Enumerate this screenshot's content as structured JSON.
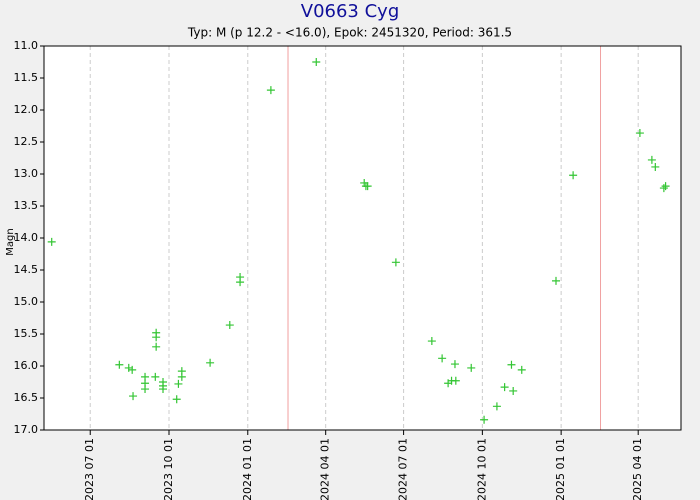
{
  "chart_data": {
    "type": "scatter",
    "title": "V0663 Cyg",
    "subtitle": "Typ: M (p 12.2 - <16.0), Epok: 2451320, Period: 361.5",
    "y_label": "Magn",
    "color": "#33c533",
    "max_line_color": "#f0a0a0",
    "y_inverted": true,
    "grid": true,
    "x": [
      "2023-05-17",
      "2023-08-04",
      "2023-08-15",
      "2023-08-19",
      "2023-08-20",
      "2023-09-03",
      "2023-09-03",
      "2023-09-03",
      "2023-09-15",
      "2023-09-16",
      "2023-09-16",
      "2023-09-16",
      "2023-09-24",
      "2023-09-24",
      "2023-09-24",
      "2023-10-10",
      "2023-10-12",
      "2023-10-16",
      "2023-10-16",
      "2023-11-18",
      "2023-12-11",
      "2023-12-23",
      "2023-12-23",
      "2024-01-28",
      "2024-03-21",
      "2024-05-16",
      "2024-05-18",
      "2024-05-20",
      "2024-06-22",
      "2024-08-03",
      "2024-08-15",
      "2024-08-22",
      "2024-08-26",
      "2024-08-30",
      "2024-08-31",
      "2024-09-18",
      "2024-10-03",
      "2024-10-18",
      "2024-10-27",
      "2024-11-04",
      "2024-11-06",
      "2024-11-16",
      "2024-12-26",
      "2025-01-15",
      "2025-04-03",
      "2025-04-17",
      "2025-04-21",
      "2025-05-01",
      "2025-05-03"
    ],
    "values": [
      14.06,
      15.98,
      16.03,
      16.06,
      16.47,
      16.17,
      16.27,
      16.36,
      16.17,
      15.48,
      15.55,
      15.7,
      16.25,
      16.31,
      16.36,
      16.52,
      16.28,
      16.08,
      16.17,
      15.95,
      15.36,
      14.61,
      14.69,
      11.69,
      11.25,
      13.14,
      13.19,
      13.19,
      14.38,
      15.61,
      15.88,
      16.27,
      16.23,
      15.97,
      16.23,
      16.03,
      16.84,
      16.63,
      16.33,
      15.98,
      16.39,
      16.06,
      14.67,
      13.02,
      12.36,
      12.78,
      12.89,
      13.22,
      13.19
    ],
    "max_lines": [
      "2024-02-17",
      "2025-02-16"
    ],
    "xlim": [
      "2023-05-08",
      "2025-05-21"
    ],
    "xticks": [
      {
        "value": "2023-07-01",
        "label": "2023 07 01"
      },
      {
        "value": "2023-10-01",
        "label": "2023 10 01"
      },
      {
        "value": "2024-01-01",
        "label": "2024 01 01"
      },
      {
        "value": "2024-04-01",
        "label": "2024 04 01"
      },
      {
        "value": "2024-07-01",
        "label": "2024 07 01"
      },
      {
        "value": "2024-10-01",
        "label": "2024 10 01"
      },
      {
        "value": "2025-01-01",
        "label": "2025 01 01"
      },
      {
        "value": "2025-04-01",
        "label": "2025 04 01"
      }
    ],
    "ylim": [
      11,
      17
    ],
    "yticks": [
      {
        "value": 11,
        "label": "11.0"
      },
      11.5,
      {
        "value": 12,
        "label": "12.0"
      },
      12.5,
      {
        "value": 13,
        "label": "13.0"
      },
      13.5,
      {
        "value": 14,
        "label": "14.0"
      },
      14.5,
      {
        "value": 15,
        "label": "15.0"
      },
      15.5,
      {
        "value": 16,
        "label": "16.0"
      },
      16.5,
      {
        "value": 17,
        "label": "17.0"
      }
    ]
  }
}
